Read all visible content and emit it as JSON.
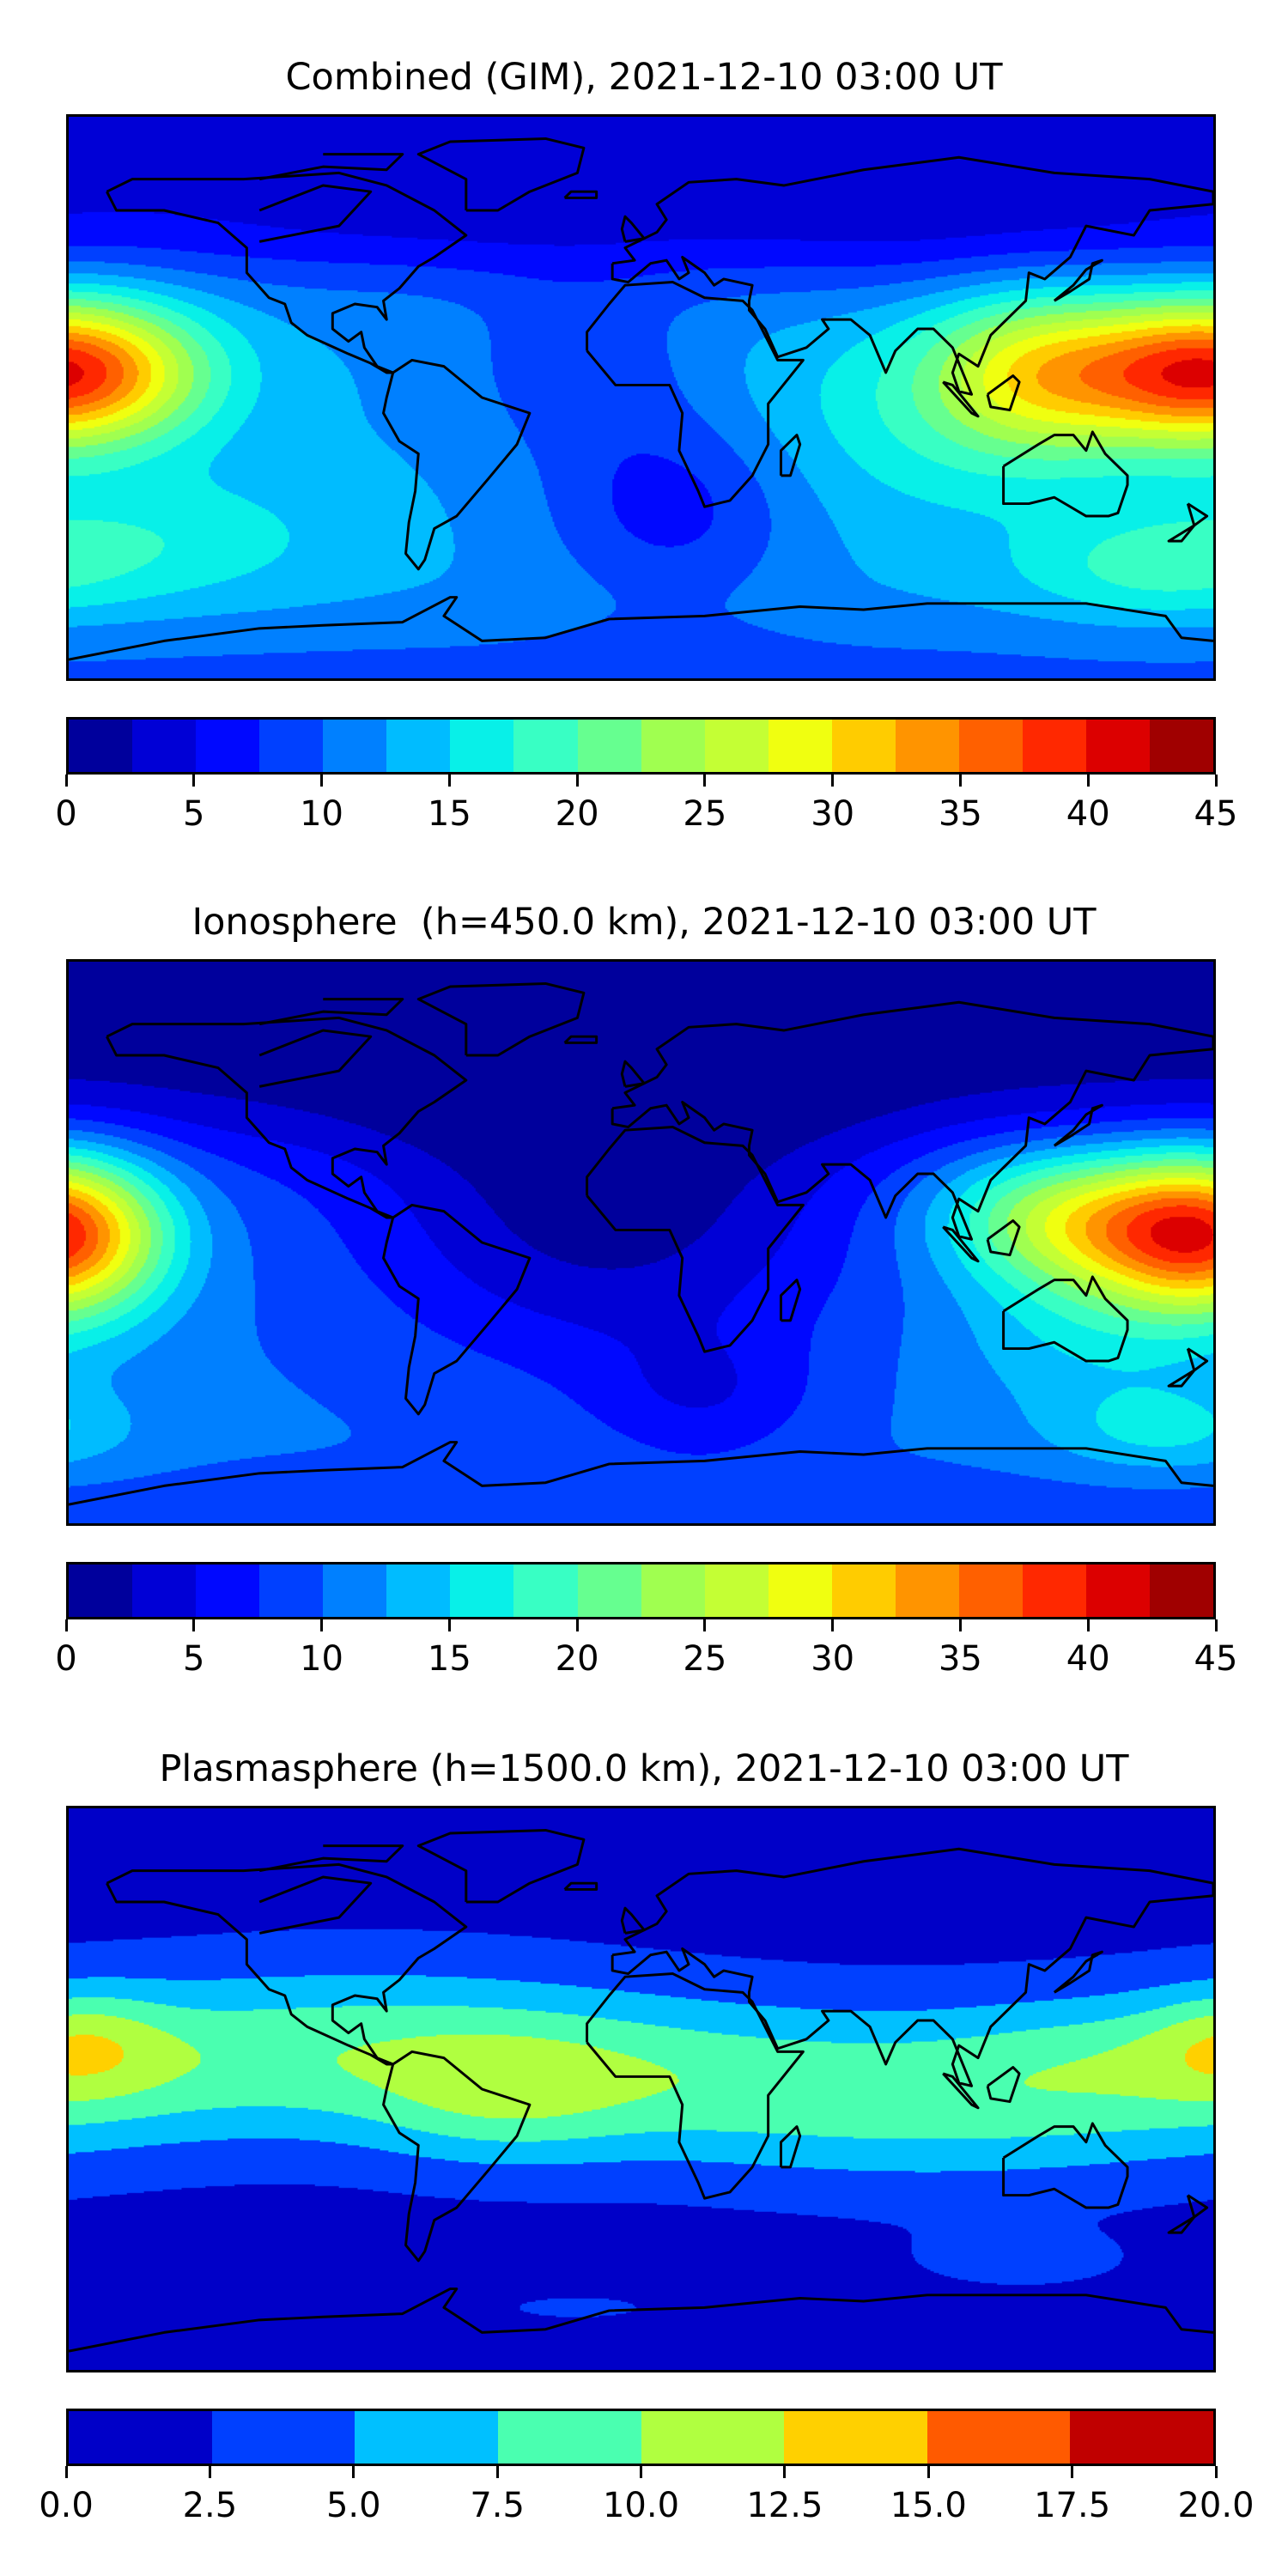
{
  "panels": [
    {
      "title": "Combined (GIM), 2021-12-10 03:00 UT",
      "field": "combined",
      "colorbar": {
        "levels": [
          0,
          2.5,
          5,
          7.5,
          10,
          12.5,
          15,
          17.5,
          20,
          22.5,
          25,
          27.5,
          30,
          32.5,
          35,
          37.5,
          40,
          42.5,
          45
        ],
        "tick_labels": [
          "0",
          "5",
          "10",
          "15",
          "20",
          "25",
          "30",
          "35",
          "40",
          "45"
        ],
        "tick_values": [
          0,
          5,
          10,
          15,
          20,
          25,
          30,
          35,
          40,
          45
        ],
        "colors": [
          "#00009c",
          "#0000d6",
          "#0008ff",
          "#0040ff",
          "#0080ff",
          "#00bcff",
          "#08f0e8",
          "#38ffc4",
          "#66ff90",
          "#a0ff50",
          "#c4ff34",
          "#f0ff10",
          "#ffcc00",
          "#ff9400",
          "#ff6000",
          "#ff2800",
          "#dc0000",
          "#a00000"
        ]
      }
    },
    {
      "title": "Ionosphere  (h=450.0 km), 2021-12-10 03:00 UT",
      "field": "ionosphere",
      "colorbar": {
        "levels": [
          0,
          2.5,
          5,
          7.5,
          10,
          12.5,
          15,
          17.5,
          20,
          22.5,
          25,
          27.5,
          30,
          32.5,
          35,
          37.5,
          40,
          42.5,
          45
        ],
        "tick_labels": [
          "0",
          "5",
          "10",
          "15",
          "20",
          "25",
          "30",
          "35",
          "40",
          "45"
        ],
        "tick_values": [
          0,
          5,
          10,
          15,
          20,
          25,
          30,
          35,
          40,
          45
        ],
        "colors": [
          "#00009c",
          "#0000d6",
          "#0008ff",
          "#0040ff",
          "#0080ff",
          "#00bcff",
          "#08f0e8",
          "#38ffc4",
          "#66ff90",
          "#a0ff50",
          "#c4ff34",
          "#f0ff10",
          "#ffcc00",
          "#ff9400",
          "#ff6000",
          "#ff2800",
          "#dc0000",
          "#a00000"
        ]
      }
    },
    {
      "title": "Plasmasphere (h=1500.0 km), 2021-12-10 03:00 UT",
      "field": "plasmasphere",
      "colorbar": {
        "levels": [
          0,
          2.5,
          5,
          7.5,
          10,
          12.5,
          15,
          17.5,
          20
        ],
        "tick_labels": [
          "0.0",
          "2.5",
          "5.0",
          "7.5",
          "10.0",
          "12.5",
          "15.0",
          "17.5",
          "20.0"
        ],
        "tick_values": [
          0,
          2.5,
          5,
          7.5,
          10,
          12.5,
          15,
          17.5,
          20
        ],
        "colors": [
          "#0000c8",
          "#0040ff",
          "#00c0ff",
          "#4affb0",
          "#b0ff40",
          "#ffd000",
          "#ff5a00",
          "#c00000"
        ]
      }
    }
  ],
  "chart_data": [
    {
      "type": "heatmap",
      "title": "Combined (GIM), 2021-12-10 03:00 UT",
      "xlabel": "",
      "ylabel": "",
      "xlim": [
        -180,
        180
      ],
      "ylim": [
        -90,
        90
      ],
      "colorbar_range": [
        0,
        45
      ],
      "features": [
        {
          "name": "peak",
          "lon": -180,
          "lat": 8,
          "value": 38
        },
        {
          "name": "peak",
          "lon": 125,
          "lat": 8,
          "value": 26
        },
        {
          "name": "low",
          "lon": -60,
          "lat": 75,
          "value": 1
        },
        {
          "name": "low",
          "lon": 10,
          "lat": -35,
          "value": 6
        }
      ]
    },
    {
      "type": "heatmap",
      "title": "Ionosphere  (h=450.0 km), 2021-12-10 03:00 UT",
      "xlabel": "",
      "ylabel": "",
      "xlim": [
        -180,
        180
      ],
      "ylim": [
        -90,
        90
      ],
      "colorbar_range": [
        0,
        45
      ],
      "features": [
        {
          "name": "peak",
          "lon": -180,
          "lat": 0,
          "value": 30
        },
        {
          "name": "peak",
          "lon": 175,
          "lat": -5,
          "value": 31
        },
        {
          "name": "low",
          "lon": -20,
          "lat": 30,
          "value": 1
        }
      ]
    },
    {
      "type": "heatmap",
      "title": "Plasmasphere (h=1500.0 km), 2021-12-10 03:00 UT",
      "xlabel": "",
      "ylabel": "",
      "xlim": [
        -180,
        180
      ],
      "ylim": [
        -90,
        90
      ],
      "colorbar_range": [
        0,
        20
      ],
      "features": [
        {
          "name": "peak",
          "lon": -175,
          "lat": 15,
          "value": 13
        },
        {
          "name": "peak",
          "lon": -45,
          "lat": -5,
          "value": 11
        },
        {
          "name": "low",
          "lon": 60,
          "lat": -50,
          "value": 1.5
        }
      ]
    }
  ]
}
